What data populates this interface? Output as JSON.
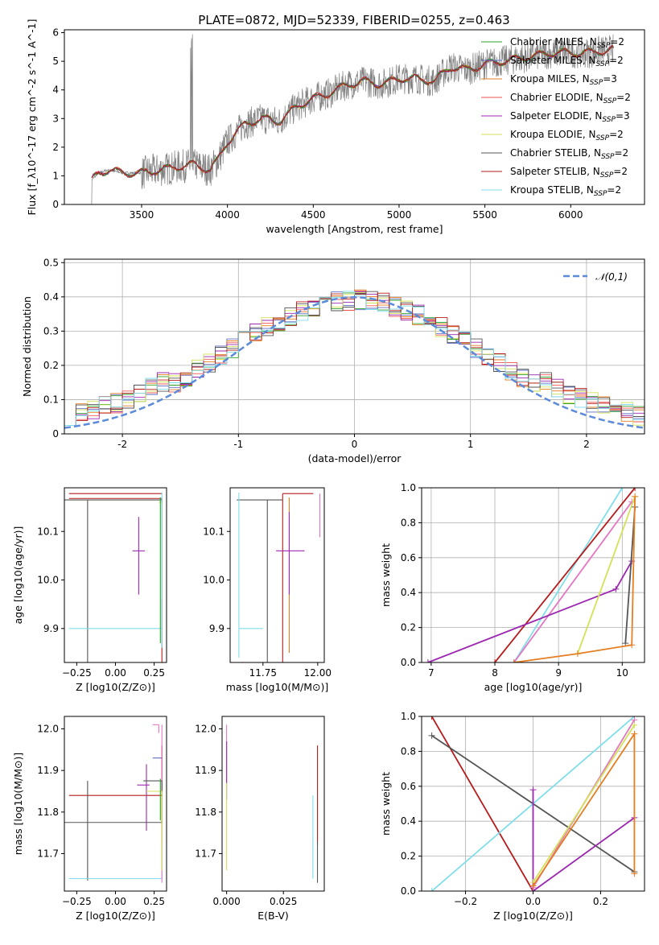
{
  "figure": {
    "title": "PLATE=0872, MJD=52339, FIBERID=0255, z=0.463"
  },
  "colors": {
    "Chabrier MILES": "#2ca02c",
    "Salpeter MILES": "#5c6bc0",
    "Kroupa MILES": "#e67e22",
    "Chabrier ELODIE": "#ef5350",
    "Salpeter ELODIE": "#9c27b0",
    "Kroupa ELODIE": "#d4e157",
    "Chabrier STELIB": "#555555",
    "Salpeter STELIB": "#b71c1c",
    "Kroupa STELIB": "#80deea",
    "Kroupa MILES pink": "#e377c2",
    "gaussian": "#5b8bd9",
    "data": "#808080"
  },
  "chart_data": [
    {
      "id": "spectrum",
      "type": "line",
      "xlabel": "wavelength [Angstrom, rest frame]",
      "ylabel": "Flux [f_λ10^-17 erg cm^-2 s^-1 A^-1]",
      "xlim": [
        3050,
        6430
      ],
      "ylim": [
        0,
        6.1
      ],
      "xticks": [
        3500,
        4000,
        4500,
        5000,
        5500,
        6000
      ],
      "yticks": [
        0,
        1,
        2,
        3,
        4,
        5,
        6
      ],
      "legend": [
        "Chabrier MILES, N_SSP=2",
        "Salpeter MILES, N_SSP=2",
        "Kroupa MILES, N_SSP=3",
        "Chabrier ELODIE, N_SSP=2",
        "Salpeter ELODIE, N_SSP=3",
        "Kroupa ELODIE, N_SSP=2",
        "Chabrier STELIB, N_SSP=2",
        "Salpeter STELIB, N_SSP=2",
        "Kroupa STELIB, N_SSP=2"
      ],
      "legend_location": "right",
      "continuum_points": [
        [
          3200,
          0.8
        ],
        [
          3250,
          1.1
        ],
        [
          3300,
          1.2
        ],
        [
          3400,
          1.1
        ],
        [
          3500,
          1.1
        ],
        [
          3600,
          1.2
        ],
        [
          3700,
          1.3
        ],
        [
          3800,
          1.4
        ],
        [
          3900,
          1.2
        ],
        [
          3950,
          1.6
        ],
        [
          4000,
          2.2
        ],
        [
          4100,
          2.8
        ],
        [
          4200,
          3.0
        ],
        [
          4300,
          2.9
        ],
        [
          4400,
          3.4
        ],
        [
          4500,
          3.7
        ],
        [
          4600,
          3.9
        ],
        [
          4700,
          4.2
        ],
        [
          4800,
          4.3
        ],
        [
          4900,
          4.2
        ],
        [
          5000,
          4.4
        ],
        [
          5100,
          4.4
        ],
        [
          5200,
          4.3
        ],
        [
          5300,
          4.8
        ],
        [
          5400,
          4.7
        ],
        [
          5500,
          4.9
        ],
        [
          5600,
          5.0
        ],
        [
          5700,
          5.1
        ],
        [
          5800,
          5.2
        ],
        [
          5900,
          5.3
        ],
        [
          6000,
          5.3
        ],
        [
          6100,
          5.3
        ],
        [
          6250,
          5.4
        ]
      ]
    },
    {
      "id": "residuals",
      "type": "line",
      "xlabel": "(data-model)/error",
      "ylabel": "Normed distribution",
      "xlim": [
        -2.5,
        2.5
      ],
      "ylim": [
        0,
        0.51
      ],
      "xticks": [
        -2,
        -1,
        0,
        1,
        2
      ],
      "yticks": [
        0.0,
        0.1,
        0.2,
        0.3,
        0.4,
        0.5
      ],
      "legend": [
        "𝒩(0,1)"
      ],
      "legend_location": "top-right"
    },
    {
      "id": "age_vs_Z",
      "type": "scatter",
      "xlabel": "Z [log10(Z/Z⊙)]",
      "ylabel": "age [log10(age/yr)]",
      "xlim": [
        -0.33,
        0.33
      ],
      "ylim": [
        9.83,
        10.19
      ],
      "xticks": [
        -0.25,
        0.0,
        0.25
      ],
      "xticklabels": [
        "−0.25",
        "0.00",
        "0.25"
      ],
      "yticks": [
        9.9,
        10.0,
        10.1
      ],
      "yticklabels": [
        "9.9",
        "10.0",
        "10.1"
      ]
    },
    {
      "id": "age_vs_mass",
      "type": "scatter",
      "xlabel": "mass [log10(M/M⊙)]",
      "xlim": [
        11.6,
        12.03
      ],
      "ylim": [
        9.83,
        10.19
      ],
      "xticks": [
        11.75,
        12.0
      ],
      "xticklabels": [
        "11.75",
        "12.00"
      ],
      "yticks": [
        9.9,
        10.0,
        10.1
      ],
      "yticklabels": [
        "9.9",
        "10.0",
        "10.1"
      ]
    },
    {
      "id": "weight_vs_age",
      "type": "line",
      "xlabel": "age [log10(age/yr)]",
      "ylabel": "mass weight",
      "xlim": [
        6.85,
        10.35
      ],
      "ylim": [
        0,
        1
      ],
      "xticks": [
        7,
        8,
        9,
        10
      ],
      "xticklabels": [
        "7",
        "8",
        "9",
        "10"
      ],
      "yticks": [
        0,
        0.2,
        0.4,
        0.6,
        0.8,
        1.0
      ],
      "yticklabels": [
        "0.0",
        "0.2",
        "0.4",
        "0.6",
        "0.8",
        "1.0"
      ]
    },
    {
      "id": "mass_vs_Z",
      "type": "scatter",
      "xlabel": "Z [log10(Z/Z⊙)]",
      "ylabel": "mass [log10(M/M⊙)]",
      "xlim": [
        -0.33,
        0.33
      ],
      "ylim": [
        11.61,
        12.03
      ],
      "xticks": [
        -0.25,
        0.0,
        0.25
      ],
      "xticklabels": [
        "−0.25",
        "0.00",
        "0.25"
      ],
      "yticks": [
        11.7,
        11.8,
        11.9,
        12.0
      ],
      "yticklabels": [
        "11.7",
        "11.8",
        "11.9",
        "12.0"
      ]
    },
    {
      "id": "mass_vs_ebv",
      "type": "scatter",
      "xlabel": "E(B-V)",
      "xlim": [
        -0.002,
        0.043
      ],
      "ylim": [
        11.61,
        12.03
      ],
      "xticks": [
        0.0,
        0.025
      ],
      "xticklabels": [
        "0.000",
        "0.025"
      ],
      "yticks": [
        11.7,
        11.8,
        11.9,
        12.0
      ],
      "yticklabels": [
        "11.7",
        "11.8",
        "11.9",
        "12.0"
      ]
    },
    {
      "id": "weight_vs_Z",
      "type": "line",
      "xlabel": "Z [log10(Z/Z⊙)]",
      "ylabel": "mass weight",
      "xlim": [
        -0.33,
        0.33
      ],
      "ylim": [
        0,
        1
      ],
      "xticks": [
        -0.2,
        0.0,
        0.2
      ],
      "xticklabels": [
        "−0.2",
        "0.0",
        "0.2"
      ],
      "yticks": [
        0,
        0.2,
        0.4,
        0.6,
        0.8,
        1.0
      ],
      "yticklabels": [
        "0.0",
        "0.2",
        "0.4",
        "0.6",
        "0.8",
        "1.0"
      ]
    }
  ]
}
